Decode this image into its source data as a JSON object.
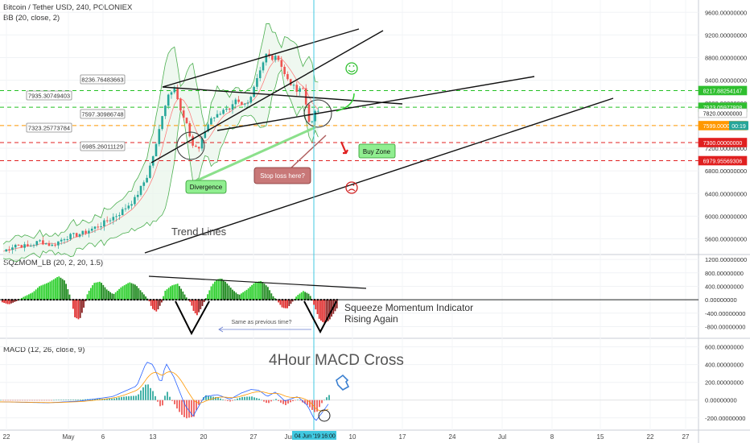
{
  "header": {
    "symbol_line": "Bitcoin / Tether USD, 240, POLONIEX",
    "bb_label": "BB (20, close, 2)",
    "sqz_label": "SQZMOM_LB (20, 2, 20, 1.5)",
    "macd_label": "MACD (12, 26, close, 9)"
  },
  "colors": {
    "up": "#26a69a",
    "down": "#ef5350",
    "bb": "#4caf50",
    "bb_fill": "#e8f5e9",
    "sqz_up": "#2fd02f",
    "sqz_down": "#e03030",
    "macd": "#2962ff",
    "signal": "#ff9800",
    "green_line": "#22c022",
    "red_line": "#e02020",
    "orange_line": "#ff9800",
    "cursor": "#40c8e0"
  },
  "chart_data": [
    {
      "type": "candlestick",
      "title": "Bitcoin / Tether USD, 240, POLONIEX",
      "x_ticks": [
        "22",
        "May",
        "6",
        "13",
        "20",
        "27",
        "Jun",
        "10",
        "17",
        "24",
        "Jul",
        "8",
        "15",
        "22",
        "27"
      ],
      "y_ticks": [
        "5600.00000000",
        "6000.00000000",
        "6400.00000000",
        "6800.00000000",
        "7200.00000000",
        "7600.00000000",
        "8000.00000000",
        "8400.00000000",
        "8800.00000000",
        "9200.00000000",
        "9600.00000000"
      ],
      "ylim": [
        5380,
        9760
      ],
      "price_path": [
        [
          0,
          5380
        ],
        [
          4,
          5500
        ],
        [
          8,
          5460
        ],
        [
          12,
          5560
        ],
        [
          16,
          5480
        ],
        [
          20,
          5620
        ],
        [
          26,
          5700
        ],
        [
          32,
          5850
        ],
        [
          38,
          6050
        ],
        [
          43,
          6300
        ],
        [
          47,
          6700
        ],
        [
          50,
          7250
        ],
        [
          52,
          7800
        ],
        [
          54,
          8150
        ],
        [
          56,
          8300
        ],
        [
          58,
          7850
        ],
        [
          60,
          7600
        ],
        [
          62,
          7250
        ],
        [
          64,
          7200
        ],
        [
          66,
          7500
        ],
        [
          68,
          7750
        ],
        [
          70,
          7780
        ],
        [
          72,
          7900
        ],
        [
          74,
          7850
        ],
        [
          76,
          8020
        ],
        [
          78,
          7950
        ],
        [
          80,
          8000
        ],
        [
          82,
          8300
        ],
        [
          84,
          8600
        ],
        [
          86,
          8850
        ],
        [
          88,
          8780
        ],
        [
          90,
          8800
        ],
        [
          92,
          8500
        ],
        [
          94,
          8350
        ],
        [
          96,
          8200
        ],
        [
          98,
          8250
        ],
        [
          100,
          7700
        ],
        [
          101,
          7650
        ],
        [
          102,
          7820
        ],
        [
          103,
          7880
        ]
      ],
      "bollinger_width": 260,
      "horizontal_levels": [
        {
          "value": 8217.88254147,
          "label": "8217.88254147",
          "color": "green",
          "pill": true
        },
        {
          "value": 7923.0597,
          "label": "7923.05977808",
          "color": "green",
          "pill": true
        },
        {
          "value": 7820.0,
          "label": "7820.00000000",
          "color": "pill",
          "pill": true
        },
        {
          "value": 7600.0,
          "label": "7600.00000000",
          "color": "orange",
          "pill": false
        },
        {
          "value": 7599.0,
          "label": "7599.00000000",
          "color": "pill",
          "pill": true
        },
        {
          "value": 7300.0,
          "label": "7300.00000000",
          "color": "red",
          "pill": true
        },
        {
          "value": 6979.95569306,
          "label": "6979.95569306",
          "color": "red",
          "pill": true
        }
      ],
      "countdown": "00:19",
      "price_callouts": [
        "8236.76483663",
        "7935.30749403",
        "7597.30986748",
        "7323.25773784",
        "6985.26011129"
      ],
      "annotations": {
        "divergence": "Divergence",
        "stop_loss": "Stop loss here?",
        "buy_zone": "Buy Zone",
        "trend_lines": "Trend Lines"
      }
    },
    {
      "type": "histogram",
      "title": "SQZMOM_LB (20, 2, 20, 1.5)",
      "y_ticks": [
        "-800.00000000",
        "-400.00000000",
        "0.00000000",
        "400.00000000",
        "800.00000000",
        "1200.00000000"
      ],
      "ylim": [
        -1100,
        1250
      ],
      "annotations": {
        "title_line1": "Squeeze Momentum Indicator",
        "title_line2": "Rising Again",
        "same_as": "Same as previous time?"
      }
    },
    {
      "type": "macd",
      "title": "MACD (12, 26, close, 9)",
      "y_ticks": [
        "-200.00000000",
        "0.00000000",
        "200.00000000",
        "400.00000000",
        "600.00000000"
      ],
      "ylim": [
        -320,
        660
      ],
      "annotations": {
        "cross": "4Hour MACD Cross",
        "date_stamp": "04 Jun '19",
        "time_stamp": "16:00"
      }
    }
  ]
}
